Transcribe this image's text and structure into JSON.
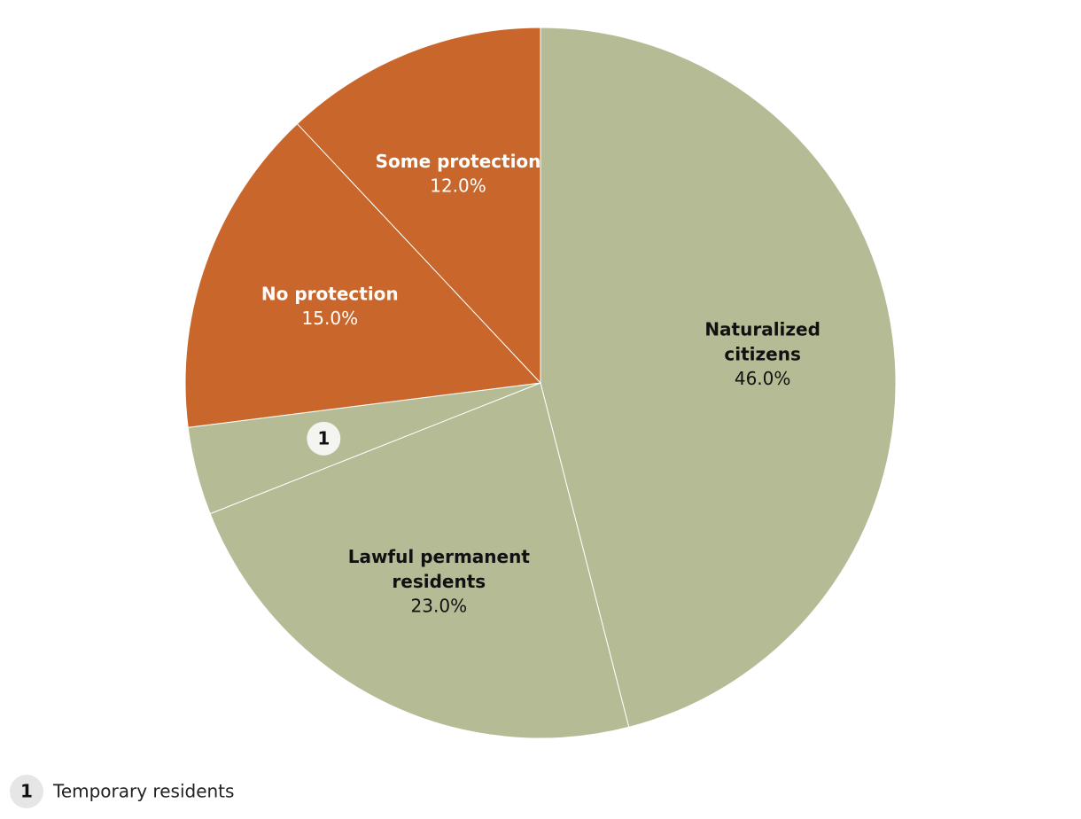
{
  "chart_data": {
    "type": "pie",
    "categories": [
      "Naturalized citizens",
      "Lawful permanent residents",
      "Temporary residents",
      "No protection",
      "Some protection"
    ],
    "values": [
      46,
      23,
      4,
      15,
      12
    ],
    "value_labels": [
      "46.0%",
      "23.0%",
      null,
      "15.0%",
      "12.0%"
    ],
    "markers": [
      null,
      null,
      "1",
      null,
      null
    ],
    "colors": [
      "#b5bb94",
      "#b5bb94",
      "#b5bb94",
      "#c8662b",
      "#c8662b"
    ]
  }
}
